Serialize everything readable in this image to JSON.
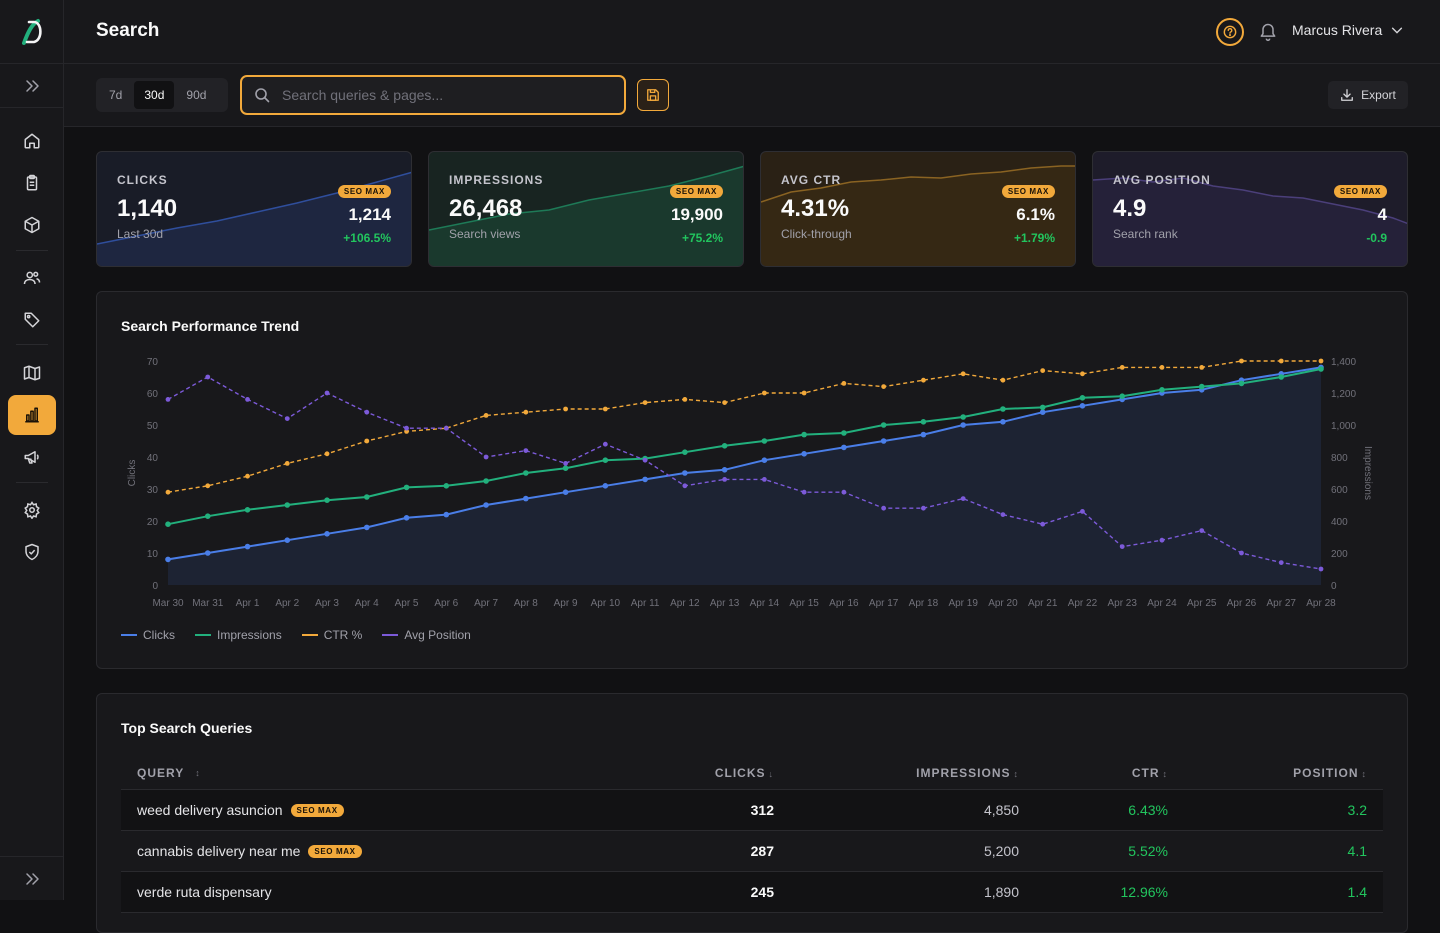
{
  "header": {
    "title": "Search",
    "user_name": "Marcus Rivera"
  },
  "toolbar": {
    "ranges": [
      "7d",
      "30d",
      "90d"
    ],
    "active_range": "30d",
    "search_placeholder": "Search queries & pages...",
    "search_value": "",
    "export_label": "Export"
  },
  "sidebar": {
    "items": [
      {
        "icon": "home-icon"
      },
      {
        "icon": "clipboard-icon"
      },
      {
        "icon": "box-icon"
      },
      {
        "icon": "users-icon"
      },
      {
        "icon": "tag-icon"
      },
      {
        "icon": "map-icon"
      },
      {
        "icon": "bar-chart-icon",
        "active": true
      },
      {
        "icon": "megaphone-icon"
      },
      {
        "icon": "gear-icon"
      },
      {
        "icon": "shield-check-icon"
      }
    ]
  },
  "kpis": [
    {
      "label": "CLICKS",
      "value": "1,140",
      "sub": "Last 30d",
      "badge": "SEO MAX",
      "compare": "1,214",
      "delta": "+106.5%",
      "accent": "#3b6fd8"
    },
    {
      "label": "IMPRESSIONS",
      "value": "26,468",
      "sub": "Search views",
      "badge": "SEO MAX",
      "compare": "19,900",
      "delta": "+75.2%",
      "accent": "#22b07d"
    },
    {
      "label": "AVG CTR",
      "value": "4.31%",
      "sub": "Click-through",
      "badge": "SEO MAX",
      "compare": "6.1%",
      "delta": "+1.79%",
      "accent": "#f2a93b"
    },
    {
      "label": "AVG POSITION",
      "value": "4.9",
      "sub": "Search rank",
      "badge": "SEO MAX",
      "compare": "4",
      "delta": "-0.9",
      "accent": "#7c5ad9"
    }
  ],
  "trend": {
    "title": "Search Performance Trend",
    "legend": [
      "Clicks",
      "Impressions",
      "CTR %",
      "Avg Position"
    ]
  },
  "chart_data": {
    "type": "line",
    "title": "Search Performance Trend",
    "x": [
      "Mar 30",
      "Mar 31",
      "Apr 1",
      "Apr 2",
      "Apr 3",
      "Apr 4",
      "Apr 5",
      "Apr 6",
      "Apr 7",
      "Apr 8",
      "Apr 9",
      "Apr 10",
      "Apr 11",
      "Apr 12",
      "Apr 13",
      "Apr 14",
      "Apr 15",
      "Apr 16",
      "Apr 17",
      "Apr 18",
      "Apr 19",
      "Apr 20",
      "Apr 21",
      "Apr 22",
      "Apr 23",
      "Apr 24",
      "Apr 25",
      "Apr 26",
      "Apr 27",
      "Apr 28"
    ],
    "ylabel": "Clicks",
    "ylabel_right": "Impressions",
    "ylim": [
      0,
      70
    ],
    "ylim_right": [
      0,
      1400
    ],
    "yticks": [
      0,
      10,
      20,
      30,
      40,
      50,
      60,
      70
    ],
    "yticks_right": [
      "0",
      "200",
      "400",
      "600",
      "800",
      "1,000",
      "1,200",
      "1,400"
    ],
    "colors": {
      "Clicks": "#4a7ee8",
      "Impressions": "#22b07d",
      "CTR %": "#f2a93b",
      "Avg Position": "#7c5ad9"
    },
    "series": [
      {
        "name": "Clicks",
        "axis": "left",
        "style": "solid",
        "values": [
          8,
          10,
          12,
          14,
          16,
          18,
          21,
          22,
          25,
          27,
          29,
          31,
          33,
          35,
          36,
          39,
          41,
          43,
          45,
          47,
          50,
          51,
          54,
          56,
          58,
          60,
          61,
          64,
          66,
          68
        ]
      },
      {
        "name": "Impressions",
        "axis": "right",
        "style": "solid",
        "values": [
          380,
          430,
          470,
          500,
          530,
          550,
          610,
          620,
          650,
          700,
          730,
          780,
          790,
          830,
          870,
          900,
          940,
          950,
          1000,
          1020,
          1050,
          1100,
          1110,
          1170,
          1180,
          1220,
          1240,
          1260,
          1300,
          1350
        ]
      },
      {
        "name": "CTR %",
        "axis": "left",
        "style": "dashed",
        "values": [
          29,
          31,
          34,
          38,
          41,
          45,
          48,
          49,
          53,
          54,
          55,
          55,
          57,
          58,
          57,
          60,
          60,
          63,
          62,
          64,
          66,
          64,
          67,
          66,
          68,
          68,
          68,
          70,
          70,
          70
        ]
      },
      {
        "name": "Avg Position",
        "axis": "left",
        "style": "dashed",
        "values": [
          58,
          65,
          58,
          52,
          60,
          54,
          49,
          49,
          40,
          42,
          38,
          44,
          39,
          31,
          33,
          33,
          29,
          29,
          24,
          24,
          27,
          22,
          19,
          23,
          12,
          14,
          17,
          10,
          7,
          5
        ]
      }
    ]
  },
  "queries": {
    "title": "Top Search Queries",
    "columns": [
      "QUERY",
      "CLICKS",
      "IMPRESSIONS",
      "CTR",
      "POSITION"
    ],
    "sort_marks": [
      "↕",
      "↓",
      "↕",
      "↕",
      "↕"
    ],
    "rows": [
      {
        "query": "weed delivery asuncion",
        "badge": "SEO MAX",
        "clicks": "312",
        "impressions": "4,850",
        "ctr": "6.43%",
        "position": "3.2"
      },
      {
        "query": "cannabis delivery near me",
        "badge": "SEO MAX",
        "clicks": "287",
        "impressions": "5,200",
        "ctr": "5.52%",
        "position": "4.1"
      },
      {
        "query": "verde ruta dispensary",
        "badge": "",
        "clicks": "245",
        "impressions": "1,890",
        "ctr": "12.96%",
        "position": "1.4"
      }
    ]
  }
}
